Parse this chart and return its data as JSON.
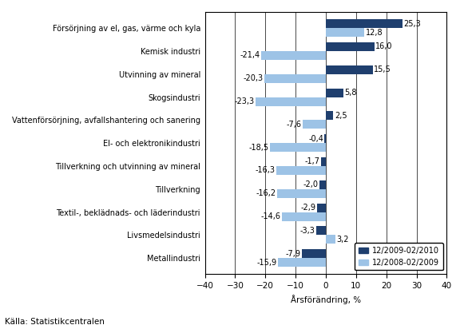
{
  "categories": [
    "Metallindustri",
    "Livsmedelsindustri",
    "Textil-, beklädnads- och läderindustri",
    "Tillverkning",
    "Tillverkning och utvinning av mineral",
    "El- och elektronikindustri",
    "Vattenförsörjning, avfallshantering och sanering",
    "Skogsindustri",
    "Utvinning av mineral",
    "Kemisk industri",
    "Försörjning av el, gas, värme och kyla"
  ],
  "values_2010": [
    -7.9,
    -3.3,
    -2.9,
    -2.0,
    -1.7,
    -0.4,
    2.5,
    5.8,
    15.5,
    16.0,
    25.3
  ],
  "values_2009": [
    -15.9,
    3.2,
    -14.6,
    -16.2,
    -16.3,
    -18.5,
    -7.6,
    -23.3,
    -20.3,
    -21.4,
    12.8
  ],
  "labels_2010": [
    "-7,9",
    "-3,3",
    "-2,9",
    "-2,0",
    "-1,7",
    "-0,4",
    "2,5",
    "5,8",
    "15,5",
    "16,0",
    "25,3"
  ],
  "labels_2009": [
    "-15,9",
    "3,2",
    "-14,6",
    "-16,2",
    "-16,3",
    "-18,5",
    "-7,6",
    "-23,3",
    "-20,3",
    "-21,4",
    "12,8"
  ],
  "color_2010": "#1F3F6E",
  "color_2009": "#9DC3E6",
  "legend_2010": "12/2009-02/2010",
  "legend_2009": "12/2008-02/2009",
  "xlabel": "Årsförändring, %",
  "xlim": [
    -40,
    40
  ],
  "xticks": [
    -40,
    -30,
    -20,
    -10,
    0,
    10,
    20,
    30,
    40
  ],
  "source": "Källa: Statistikcentralen",
  "background_color": "#FFFFFF",
  "bar_height": 0.38,
  "fontsize_labels": 7.0,
  "fontsize_ticks": 7.5,
  "fontsize_source": 7.5
}
